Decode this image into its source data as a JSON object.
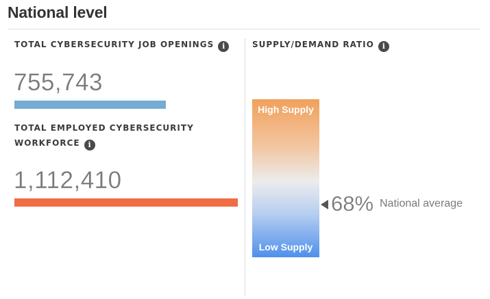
{
  "header": {
    "title": "National level"
  },
  "job_openings": {
    "label": "TOTAL CYBERSECURITY JOB OPENINGS",
    "value": "755,743",
    "bar_color": "#76abd3",
    "info_icon": "info-icon"
  },
  "workforce": {
    "label_line1": "TOTAL EMPLOYED CYBERSECURITY",
    "label_line2": "WORKFORCE",
    "value": "1,112,410",
    "bar_color": "#f06c45",
    "info_icon": "info-icon"
  },
  "supply_demand": {
    "label": "SUPPLY/DEMAND RATIO",
    "high_label": "High Supply",
    "low_label": "Low Supply",
    "value": "68%",
    "caption": "National average",
    "gradient_top_color": "#f1a05c",
    "gradient_bottom_color": "#4f90ec",
    "info_icon": "info-icon"
  }
}
